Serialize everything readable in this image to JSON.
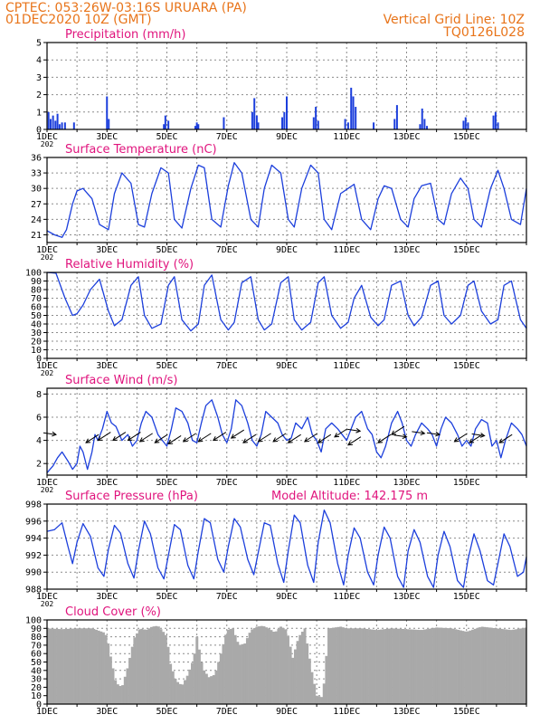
{
  "header": {
    "line1": "CPTEC:   053:26W-03:16S   URUARA (PA)",
    "line2": "01DEC2020 10Z (GMT)",
    "grid_note": "Vertical Grid Line: 10Z",
    "code": "TQ0126L028"
  },
  "day_labels": [
    "1DEC",
    "3DEC",
    "5DEC",
    "7DEC",
    "9DEC",
    "11DEC",
    "13DEC",
    "15DEC"
  ],
  "year_stub": "202",
  "colors": {
    "header": "#e8741a",
    "title": "#e0147d",
    "series": "#1c3fdc",
    "cloud": "#a9a9a9",
    "grid": "#8c8c8c"
  },
  "chart_data": [
    {
      "type": "bar",
      "title": "Precipitation (mm/h)",
      "ylim": [
        0,
        5
      ],
      "yticks": [
        0,
        1,
        2,
        3,
        4,
        5
      ],
      "x_unit": "days since 01DEC2020 10Z",
      "x": [
        0.05,
        0.12,
        0.2,
        0.28,
        0.35,
        0.42,
        0.5,
        0.6,
        0.9,
        2.0,
        2.06,
        3.9,
        3.95,
        4.05,
        4.95,
        5.0,
        5.05,
        5.9,
        6.85,
        6.92,
        7.0,
        7.05,
        7.85,
        7.92,
        8.0,
        8.9,
        8.97,
        9.05,
        9.95,
        10.05,
        10.15,
        10.22,
        10.3,
        10.9,
        11.6,
        11.68,
        12.45,
        12.52,
        12.6,
        12.68,
        13.9,
        13.97,
        14.05,
        14.9,
        14.97,
        15.05
      ],
      "values": [
        1.0,
        0.6,
        0.8,
        0.5,
        0.9,
        0.3,
        0.4,
        0.4,
        0.4,
        1.9,
        0.6,
        0.3,
        0.8,
        0.5,
        0.2,
        0.4,
        0.3,
        0.7,
        1.0,
        1.8,
        0.8,
        0.4,
        0.7,
        1.0,
        1.9,
        0.7,
        1.3,
        0.5,
        0.6,
        0.4,
        2.4,
        1.9,
        1.3,
        0.4,
        0.6,
        1.4,
        0.3,
        1.2,
        0.6,
        0.2,
        0.5,
        0.7,
        0.4,
        0.8,
        1.0,
        0.4
      ]
    },
    {
      "type": "line",
      "title": "Surface Temperature (nC)",
      "ylim": [
        19.5,
        36
      ],
      "yticks": [
        21,
        24,
        27,
        30,
        33,
        36
      ],
      "x_unit": "days since 01DEC2020 10Z",
      "x": [
        0,
        0.25,
        0.5,
        0.65,
        0.85,
        1.0,
        1.2,
        1.5,
        1.75,
        2.05,
        2.25,
        2.5,
        2.8,
        3.05,
        3.25,
        3.5,
        3.8,
        4.05,
        4.25,
        4.5,
        4.8,
        5.05,
        5.25,
        5.5,
        5.8,
        6.05,
        6.25,
        6.5,
        6.8,
        7.05,
        7.25,
        7.5,
        7.8,
        8.05,
        8.25,
        8.5,
        8.8,
        9.05,
        9.25,
        9.5,
        9.8,
        10.05,
        10.25,
        10.5,
        10.8,
        11.05,
        11.25,
        11.5,
        11.8,
        12.05,
        12.25,
        12.5,
        12.8,
        13.05,
        13.25,
        13.5,
        13.8,
        14.05,
        14.25,
        14.5,
        14.8,
        15.05,
        15.25,
        15.5,
        15.8,
        16.0
      ],
      "values": [
        21.8,
        21,
        20.5,
        22,
        27,
        29.5,
        30,
        28,
        23,
        22,
        29,
        33,
        31,
        23,
        22.5,
        29,
        34,
        33,
        24,
        22.3,
        30,
        34.5,
        34,
        24,
        22.5,
        30.5,
        35,
        33,
        24,
        22.5,
        30,
        34.5,
        33,
        24,
        22.5,
        30,
        34.5,
        33,
        24,
        22,
        29,
        30,
        30.8,
        24,
        22,
        28,
        30.5,
        30,
        24,
        22.5,
        28,
        30.5,
        31,
        24,
        23,
        29,
        32,
        30,
        24,
        22.5,
        30,
        33.5,
        30,
        24,
        23,
        30
      ]
    },
    {
      "type": "line",
      "title": "Relative Humidity (%)",
      "ylim": [
        0,
        100
      ],
      "yticks": [
        0,
        10,
        20,
        30,
        40,
        50,
        60,
        70,
        80,
        90,
        100
      ],
      "x_unit": "days since 01DEC2020 10Z",
      "x": [
        0,
        0.3,
        0.6,
        0.85,
        1.0,
        1.2,
        1.45,
        1.75,
        2.05,
        2.25,
        2.5,
        2.8,
        3.05,
        3.25,
        3.5,
        3.8,
        4.05,
        4.25,
        4.5,
        4.8,
        5.05,
        5.25,
        5.5,
        5.8,
        6.05,
        6.25,
        6.5,
        6.8,
        7.05,
        7.25,
        7.5,
        7.8,
        8.05,
        8.25,
        8.5,
        8.8,
        9.05,
        9.25,
        9.5,
        9.8,
        10.05,
        10.25,
        10.5,
        10.8,
        11.05,
        11.25,
        11.5,
        11.8,
        12.05,
        12.25,
        12.5,
        12.8,
        13.05,
        13.25,
        13.5,
        13.8,
        14.05,
        14.25,
        14.5,
        14.8,
        15.05,
        15.25,
        15.5,
        15.8,
        16.0
      ],
      "values": [
        100,
        99,
        70,
        50,
        52,
        62,
        80,
        92,
        55,
        38,
        45,
        85,
        95,
        50,
        35,
        40,
        85,
        95,
        45,
        32,
        40,
        85,
        97,
        45,
        33,
        42,
        88,
        95,
        45,
        33,
        40,
        88,
        95,
        45,
        33,
        42,
        88,
        95,
        50,
        35,
        42,
        70,
        85,
        48,
        38,
        45,
        85,
        90,
        50,
        38,
        48,
        85,
        90,
        50,
        40,
        50,
        85,
        90,
        55,
        40,
        45,
        85,
        90,
        45,
        35
      ]
    },
    {
      "type": "line",
      "title": "Surface Wind (m/s)",
      "ylim": [
        1,
        8.5
      ],
      "yticks": [
        2,
        4,
        6,
        8
      ],
      "x_unit": "days since 01DEC2020 10Z",
      "x": [
        0,
        0.1,
        0.2,
        0.35,
        0.5,
        0.7,
        0.85,
        1.0,
        1.1,
        1.2,
        1.35,
        1.5,
        1.6,
        1.7,
        1.85,
        2.0,
        2.15,
        2.3,
        2.5,
        2.7,
        2.85,
        3.0,
        3.15,
        3.3,
        3.5,
        3.7,
        3.85,
        4.0,
        4.15,
        4.3,
        4.5,
        4.7,
        4.85,
        5.0,
        5.15,
        5.3,
        5.5,
        5.7,
        5.85,
        6.0,
        6.15,
        6.3,
        6.5,
        6.7,
        6.85,
        7.0,
        7.15,
        7.3,
        7.5,
        7.7,
        7.85,
        8.0,
        8.15,
        8.3,
        8.5,
        8.7,
        8.85,
        9.0,
        9.15,
        9.3,
        9.5,
        9.7,
        9.85,
        10.0,
        10.15,
        10.3,
        10.5,
        10.7,
        10.85,
        11.0,
        11.15,
        11.3,
        11.5,
        11.7,
        11.85,
        12.0,
        12.15,
        12.3,
        12.5,
        12.7,
        12.85,
        13.0,
        13.15,
        13.3,
        13.5,
        13.7,
        13.85,
        14.0,
        14.15,
        14.3,
        14.5,
        14.7,
        14.85,
        15.0,
        15.15,
        15.3,
        15.5,
        15.7,
        15.85,
        16.0
      ],
      "values": [
        1.2,
        1.5,
        1.8,
        2.5,
        3.0,
        2.2,
        1.5,
        2.0,
        3.5,
        3.0,
        1.5,
        3.0,
        4.5,
        4.0,
        5.0,
        6.5,
        5.5,
        5.2,
        4.0,
        4.5,
        3.5,
        4.0,
        5.5,
        6.5,
        6.0,
        4.5,
        4.0,
        3.5,
        5.0,
        6.8,
        6.5,
        5.5,
        4.0,
        3.8,
        5.5,
        7.0,
        7.5,
        6.0,
        4.5,
        3.8,
        5.0,
        7.5,
        7.0,
        5.5,
        4.0,
        3.5,
        4.5,
        6.5,
        6.0,
        5.5,
        4.5,
        4.0,
        4.2,
        5.5,
        5.0,
        6.0,
        4.5,
        4.0,
        3.0,
        5.0,
        5.5,
        5.0,
        4.5,
        4.0,
        5.0,
        6.0,
        6.5,
        5.0,
        4.5,
        3.0,
        2.5,
        3.5,
        5.5,
        6.5,
        5.5,
        4.0,
        3.5,
        4.5,
        5.5,
        5.0,
        4.5,
        3.5,
        5.0,
        6.0,
        5.5,
        4.5,
        3.5,
        4.0,
        3.5,
        5.0,
        5.8,
        5.5,
        3.5,
        4.0,
        2.5,
        4.0,
        5.5,
        5.0,
        4.5,
        3.5
      ]
    },
    {
      "type": "line",
      "title": "Surface Pressure (hPa)",
      "annotation": "Model Altitude: 142.175 m",
      "ylim": [
        988,
        998
      ],
      "yticks": [
        988,
        990,
        992,
        994,
        996,
        998
      ],
      "x_unit": "days since 01DEC2020 10Z",
      "x": [
        0,
        0.25,
        0.5,
        0.7,
        0.85,
        1.0,
        1.2,
        1.45,
        1.7,
        1.9,
        2.05,
        2.25,
        2.45,
        2.7,
        2.9,
        3.05,
        3.25,
        3.45,
        3.7,
        3.9,
        4.05,
        4.25,
        4.45,
        4.7,
        4.9,
        5.05,
        5.25,
        5.45,
        5.7,
        5.9,
        6.05,
        6.25,
        6.45,
        6.7,
        6.9,
        7.05,
        7.25,
        7.45,
        7.7,
        7.9,
        8.05,
        8.25,
        8.45,
        8.7,
        8.9,
        9.05,
        9.25,
        9.45,
        9.7,
        9.9,
        10.05,
        10.25,
        10.45,
        10.7,
        10.9,
        11.05,
        11.25,
        11.45,
        11.7,
        11.9,
        12.05,
        12.25,
        12.45,
        12.7,
        12.9,
        13.05,
        13.25,
        13.45,
        13.7,
        13.9,
        14.05,
        14.25,
        14.45,
        14.7,
        14.9,
        15.05,
        15.25,
        15.45,
        15.7,
        15.9,
        16.0
      ],
      "values": [
        994.8,
        995.0,
        995.8,
        993.0,
        991.0,
        993.5,
        995.7,
        994.2,
        990.5,
        989.5,
        992.7,
        995.5,
        994.6,
        991.0,
        989.3,
        992.5,
        996.0,
        994.5,
        990.5,
        989.2,
        992.0,
        995.6,
        995.0,
        990.8,
        989.2,
        992.5,
        996.3,
        995.8,
        991.5,
        990.0,
        993.0,
        996.3,
        995.3,
        991.5,
        989.7,
        992.3,
        995.8,
        995.5,
        991.0,
        988.8,
        992.5,
        996.7,
        995.8,
        990.8,
        988.8,
        993.5,
        997.3,
        995.8,
        991.0,
        988.5,
        992.0,
        995.2,
        994.0,
        990.0,
        988.5,
        992.0,
        995.3,
        994.0,
        989.5,
        988.2,
        992.5,
        995.0,
        993.5,
        989.5,
        988.2,
        992.0,
        994.8,
        993.0,
        989.0,
        988.2,
        991.5,
        994.5,
        992.5,
        989.0,
        988.5,
        991.0,
        994.5,
        993.0,
        989.5,
        990.0,
        991.8
      ]
    },
    {
      "type": "area",
      "title": "Cloud Cover (%)",
      "ylim": [
        0,
        100
      ],
      "yticks": [
        0,
        10,
        20,
        30,
        40,
        50,
        60,
        70,
        80,
        90,
        100
      ],
      "x_unit": "days since 01DEC2020 10Z",
      "x": [
        0,
        0.5,
        1.0,
        1.5,
        1.9,
        2.0,
        2.1,
        2.3,
        2.5,
        2.7,
        2.9,
        3.1,
        3.3,
        3.5,
        3.7,
        3.9,
        4.0,
        4.1,
        4.3,
        4.5,
        4.7,
        4.9,
        5.0,
        5.2,
        5.4,
        5.6,
        5.8,
        6.0,
        6.2,
        6.4,
        6.6,
        6.8,
        7.0,
        7.2,
        7.4,
        7.6,
        7.8,
        8.0,
        8.2,
        8.4,
        8.6,
        8.8,
        9.0,
        9.2,
        9.4,
        9.6,
        9.8,
        10.0,
        10.5,
        11.0,
        11.5,
        12.0,
        12.5,
        13.0,
        13.5,
        14.0,
        14.5,
        15.0,
        15.5,
        16.0
      ],
      "values": [
        90,
        89,
        90,
        90,
        85,
        80,
        60,
        25,
        20,
        45,
        78,
        90,
        88,
        92,
        93,
        85,
        80,
        50,
        28,
        22,
        35,
        55,
        80,
        42,
        32,
        35,
        60,
        88,
        90,
        70,
        72,
        88,
        92,
        93,
        90,
        85,
        92,
        88,
        55,
        80,
        90,
        45,
        10,
        8,
        90,
        91,
        92,
        90,
        90,
        88,
        90,
        89,
        88,
        91,
        90,
        86,
        92,
        90,
        88,
        91
      ]
    }
  ]
}
